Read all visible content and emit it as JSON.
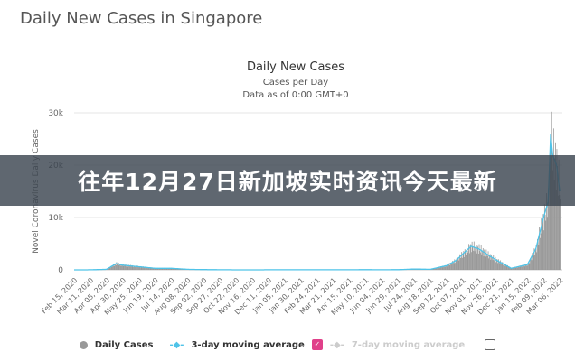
{
  "page_title": "Daily New Cases in Singapore",
  "banner": "往年12月27日新加坡实时资讯今天最新",
  "chart_data": {
    "type": "bar",
    "title": "Daily New Cases",
    "subtitle": "Cases per Day",
    "subtitle2": "Data as of 0:00 GMT+0",
    "ylabel": "Novel Coronavirus Daily Cases",
    "ylim": [
      0,
      30000
    ],
    "yticks": [
      "0",
      "10k",
      "20k",
      "30k"
    ],
    "xticks": [
      "Feb 15, 2020",
      "Mar 11, 2020",
      "Apr 05, 2020",
      "Apr 30, 2020",
      "May 25, 2020",
      "Jun 19, 2020",
      "Jul 14, 2020",
      "Aug 08, 2020",
      "Sep 02, 2020",
      "Sep 27, 2020",
      "Oct 22, 2020",
      "Nov 16, 2020",
      "Dec 11, 2020",
      "Jan 05, 2021",
      "Jan 30, 2021",
      "Feb 24, 2021",
      "Mar 21, 2021",
      "Apr 15, 2021",
      "May 10, 2021",
      "Jun 04, 2021",
      "Jun 29, 2021",
      "Jul 24, 2021",
      "Aug 18, 2021",
      "Sep 12, 2021",
      "Oct 07, 2021",
      "Nov 01, 2021",
      "Nov 26, 2021",
      "Dec 21, 2021",
      "Jan 15, 2022",
      "Feb 09, 2022",
      "Mar 06, 2022"
    ],
    "x": [
      "2020-02-15",
      "2020-03-11",
      "2020-04-05",
      "2020-04-20",
      "2020-04-30",
      "2020-05-25",
      "2020-06-19",
      "2020-07-14",
      "2020-08-08",
      "2020-09-02",
      "2020-09-27",
      "2020-10-22",
      "2020-11-16",
      "2020-12-11",
      "2021-01-05",
      "2021-01-30",
      "2021-02-24",
      "2021-03-21",
      "2021-04-15",
      "2021-05-10",
      "2021-06-04",
      "2021-06-29",
      "2021-07-24",
      "2021-08-18",
      "2021-09-12",
      "2021-09-27",
      "2021-10-07",
      "2021-10-20",
      "2021-11-01",
      "2021-11-26",
      "2021-12-21",
      "2022-01-15",
      "2022-01-28",
      "2022-02-09",
      "2022-02-16",
      "2022-02-20",
      "2022-02-23",
      "2022-03-01",
      "2022-03-06"
    ],
    "values": [
      0,
      10,
      100,
      1200,
      900,
      600,
      300,
      300,
      100,
      50,
      20,
      5,
      5,
      10,
      20,
      20,
      10,
      20,
      20,
      30,
      20,
      30,
      150,
      100,
      800,
      1800,
      3000,
      4500,
      4000,
      2000,
      300,
      1000,
      4000,
      10000,
      13000,
      26000,
      22000,
      20000,
      15000
    ],
    "series": [
      {
        "name": "Daily Cases",
        "color": "#999999"
      },
      {
        "name": "3-day moving average",
        "color": "#4fc3e8"
      },
      {
        "name": "7-day moving average",
        "color": "#cccccc",
        "enabled": false
      }
    ],
    "legend_position": "bottom",
    "grid": true
  }
}
